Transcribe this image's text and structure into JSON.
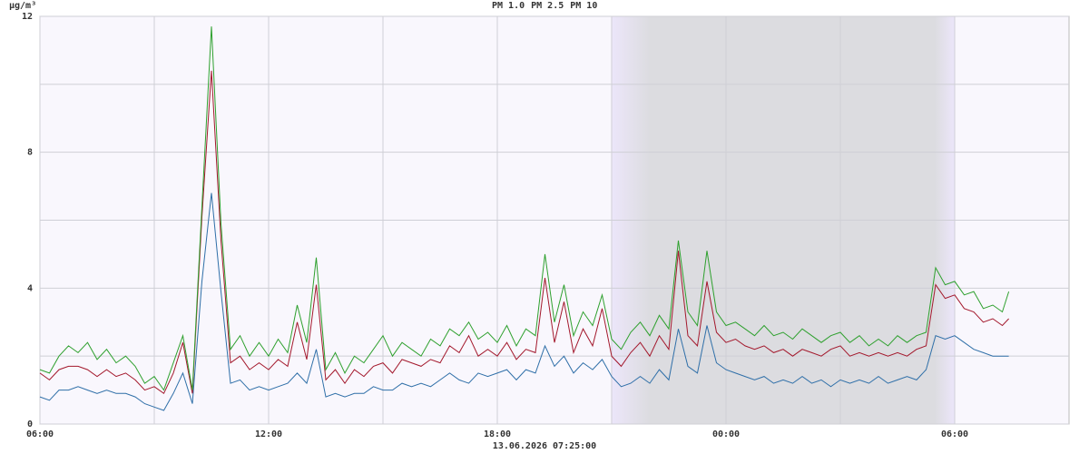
{
  "chart_data": {
    "type": "line",
    "y_label": "µg/m³",
    "footer": "13.06.2026 07:25:00",
    "x": [
      0,
      0.25,
      0.5,
      0.75,
      1,
      1.25,
      1.5,
      1.75,
      2,
      2.25,
      2.5,
      2.75,
      3,
      3.25,
      3.5,
      3.75,
      4,
      4.25,
      4.5,
      4.75,
      5,
      5.25,
      5.5,
      5.75,
      6,
      6.25,
      6.5,
      6.75,
      7,
      7.25,
      7.5,
      7.75,
      8,
      8.25,
      8.5,
      8.75,
      9,
      9.25,
      9.5,
      9.75,
      10,
      10.25,
      10.5,
      10.75,
      11,
      11.25,
      11.5,
      11.75,
      12,
      12.25,
      12.5,
      12.75,
      13,
      13.25,
      13.5,
      13.75,
      14,
      14.25,
      14.5,
      14.75,
      15,
      15.25,
      15.5,
      15.75,
      16,
      16.25,
      16.5,
      16.75,
      17,
      17.25,
      17.5,
      17.75,
      18,
      18.25,
      18.5,
      18.75,
      19,
      19.25,
      19.5,
      19.75,
      20,
      20.25,
      20.5,
      20.75,
      21,
      21.25,
      21.5,
      21.75,
      22,
      22.25,
      22.5,
      22.75,
      23,
      23.25,
      23.5,
      23.75,
      24,
      24.25,
      24.5,
      24.75,
      25,
      25.25,
      25.42
    ],
    "series": [
      {
        "name": "PM 1.0",
        "color": "#2f6fa8",
        "values": [
          0.8,
          0.7,
          1.0,
          1.0,
          1.1,
          1.0,
          0.9,
          1.0,
          0.9,
          0.9,
          0.8,
          0.6,
          0.5,
          0.4,
          0.9,
          1.5,
          0.6,
          4.2,
          6.8,
          3.9,
          1.2,
          1.3,
          1.0,
          1.1,
          1.0,
          1.1,
          1.2,
          1.5,
          1.2,
          2.2,
          0.8,
          0.9,
          0.8,
          0.9,
          0.9,
          1.1,
          1.0,
          1.0,
          1.2,
          1.1,
          1.2,
          1.1,
          1.3,
          1.5,
          1.3,
          1.2,
          1.5,
          1.4,
          1.5,
          1.6,
          1.3,
          1.6,
          1.5,
          2.3,
          1.7,
          2.0,
          1.5,
          1.8,
          1.6,
          1.9,
          1.4,
          1.1,
          1.2,
          1.4,
          1.2,
          1.6,
          1.3,
          2.8,
          1.7,
          1.5,
          2.9,
          1.8,
          1.6,
          1.5,
          1.4,
          1.3,
          1.4,
          1.2,
          1.3,
          1.2,
          1.4,
          1.2,
          1.3,
          1.1,
          1.3,
          1.2,
          1.3,
          1.2,
          1.4,
          1.2,
          1.3,
          1.4,
          1.3,
          1.6,
          2.6,
          2.5,
          2.6,
          2.4,
          2.2,
          2.1,
          2.0,
          2.0,
          2.0
        ]
      },
      {
        "name": "PM 2.5",
        "color": "#a3182c",
        "values": [
          1.5,
          1.3,
          1.6,
          1.7,
          1.7,
          1.6,
          1.4,
          1.6,
          1.4,
          1.5,
          1.3,
          1.0,
          1.1,
          0.9,
          1.5,
          2.4,
          0.9,
          6.1,
          10.4,
          5.4,
          1.8,
          2.0,
          1.6,
          1.8,
          1.6,
          1.9,
          1.7,
          3.0,
          1.9,
          4.1,
          1.3,
          1.6,
          1.2,
          1.6,
          1.4,
          1.7,
          1.8,
          1.5,
          1.9,
          1.8,
          1.7,
          1.9,
          1.8,
          2.3,
          2.1,
          2.6,
          2.0,
          2.2,
          2.0,
          2.4,
          1.9,
          2.2,
          2.1,
          4.3,
          2.4,
          3.6,
          2.1,
          2.8,
          2.3,
          3.4,
          2.0,
          1.7,
          2.1,
          2.4,
          2.0,
          2.6,
          2.2,
          5.1,
          2.6,
          2.3,
          4.2,
          2.7,
          2.4,
          2.5,
          2.3,
          2.2,
          2.3,
          2.1,
          2.2,
          2.0,
          2.2,
          2.1,
          2.0,
          2.2,
          2.3,
          2.0,
          2.1,
          2.0,
          2.1,
          2.0,
          2.1,
          2.0,
          2.2,
          2.3,
          4.1,
          3.7,
          3.8,
          3.4,
          3.3,
          3.0,
          3.1,
          2.9,
          3.1
        ]
      },
      {
        "name": "PM 10",
        "color": "#2ea02e",
        "values": [
          1.6,
          1.5,
          2.0,
          2.3,
          2.1,
          2.4,
          1.9,
          2.2,
          1.8,
          2.0,
          1.7,
          1.2,
          1.4,
          1.0,
          1.8,
          2.6,
          1.0,
          6.4,
          11.7,
          5.9,
          2.2,
          2.6,
          2.0,
          2.4,
          2.0,
          2.5,
          2.1,
          3.5,
          2.4,
          4.9,
          1.6,
          2.1,
          1.5,
          2.0,
          1.8,
          2.2,
          2.6,
          2.0,
          2.4,
          2.2,
          2.0,
          2.5,
          2.3,
          2.8,
          2.6,
          3.0,
          2.5,
          2.7,
          2.4,
          2.9,
          2.3,
          2.8,
          2.6,
          5.0,
          3.0,
          4.1,
          2.6,
          3.3,
          2.9,
          3.8,
          2.5,
          2.2,
          2.7,
          3.0,
          2.6,
          3.2,
          2.8,
          5.4,
          3.3,
          2.9,
          5.1,
          3.3,
          2.9,
          3.0,
          2.8,
          2.6,
          2.9,
          2.6,
          2.7,
          2.5,
          2.8,
          2.6,
          2.4,
          2.6,
          2.7,
          2.4,
          2.6,
          2.3,
          2.5,
          2.3,
          2.6,
          2.4,
          2.6,
          2.7,
          4.6,
          4.1,
          4.2,
          3.8,
          3.9,
          3.4,
          3.5,
          3.3,
          3.9
        ]
      }
    ],
    "xlim": [
      0,
      27
    ],
    "xticks": [
      {
        "value": 0,
        "label": "06:00"
      },
      {
        "value": 6,
        "label": "12:00"
      },
      {
        "value": 12,
        "label": "18:00"
      },
      {
        "value": 18,
        "label": "00:00"
      },
      {
        "value": 24,
        "label": "06:00"
      }
    ],
    "minor_xticks": [
      3,
      9,
      15,
      21
    ],
    "ylim": [
      0,
      12
    ],
    "yticks": [
      0,
      4,
      8,
      12
    ],
    "minor_yticks": [
      2,
      6,
      10
    ],
    "grid": true
  }
}
